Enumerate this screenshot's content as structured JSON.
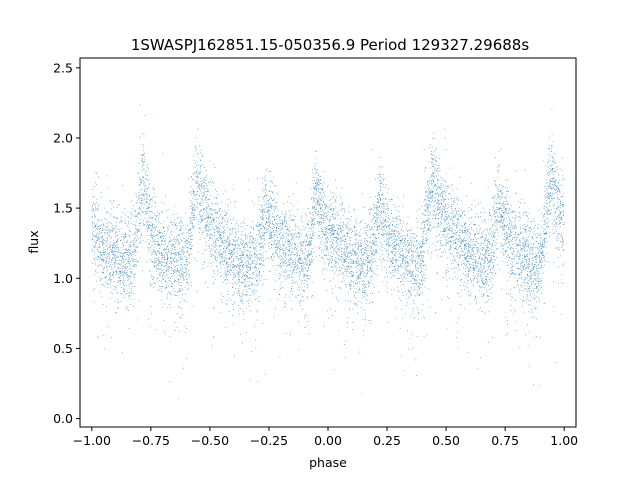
{
  "chart_data": {
    "type": "scatter",
    "title": "1SWASPJ162851.15-050356.9 Period 129327.29688s",
    "xlabel": "phase",
    "ylabel": "flux",
    "xlim": [
      -1.05,
      1.05
    ],
    "ylim": [
      -0.06,
      2.57
    ],
    "xticks": [
      -1.0,
      -0.75,
      -0.5,
      -0.25,
      0.0,
      0.25,
      0.5,
      0.75,
      1.0
    ],
    "xtick_labels": [
      "−1.00",
      "−0.75",
      "−0.50",
      "−0.25",
      "0.00",
      "0.25",
      "0.50",
      "0.75",
      "1.00"
    ],
    "yticks": [
      0.0,
      0.5,
      1.0,
      1.5,
      2.0,
      2.5
    ],
    "ytick_labels": [
      "0.0",
      "0.5",
      "1.0",
      "1.5",
      "2.0",
      "2.5"
    ],
    "grid": false,
    "point_color": "#1f77b4",
    "curve_x": [
      -1.0,
      -0.98,
      -0.95,
      -0.9,
      -0.85,
      -0.82,
      -0.8,
      -0.78,
      -0.76,
      -0.74,
      -0.7,
      -0.65,
      -0.62,
      -0.6,
      -0.58,
      -0.56,
      -0.54,
      -0.52,
      -0.5,
      -0.45,
      -0.4,
      -0.35,
      -0.3,
      -0.28,
      -0.26,
      -0.24,
      -0.22,
      -0.2,
      -0.15,
      -0.1,
      -0.08,
      -0.06,
      -0.05,
      -0.04,
      -0.02,
      0.0,
      0.05,
      0.1,
      0.15,
      0.18,
      0.2,
      0.22,
      0.24,
      0.26,
      0.3,
      0.35,
      0.38,
      0.4,
      0.42,
      0.44,
      0.46,
      0.48,
      0.5,
      0.55,
      0.6,
      0.65,
      0.68,
      0.7,
      0.72,
      0.74,
      0.76,
      0.8,
      0.85,
      0.88,
      0.9,
      0.92,
      0.94,
      0.96,
      0.98,
      1.0
    ],
    "curve_y": [
      1.38,
      1.3,
      1.22,
      1.15,
      1.12,
      1.18,
      1.45,
      1.7,
      1.45,
      1.28,
      1.18,
      1.12,
      1.1,
      1.12,
      1.4,
      1.68,
      1.62,
      1.5,
      1.38,
      1.25,
      1.15,
      1.1,
      1.12,
      1.3,
      1.5,
      1.38,
      1.3,
      1.25,
      1.18,
      1.12,
      1.2,
      1.45,
      1.65,
      1.55,
      1.42,
      1.35,
      1.25,
      1.15,
      1.1,
      1.15,
      1.3,
      1.55,
      1.4,
      1.3,
      1.18,
      1.1,
      1.08,
      1.15,
      1.45,
      1.68,
      1.6,
      1.5,
      1.42,
      1.28,
      1.18,
      1.12,
      1.15,
      1.3,
      1.55,
      1.42,
      1.32,
      1.2,
      1.12,
      1.08,
      1.12,
      1.4,
      1.7,
      1.6,
      1.45,
      1.38
    ],
    "scatter_spread": 0.16,
    "n_points": 9000
  }
}
